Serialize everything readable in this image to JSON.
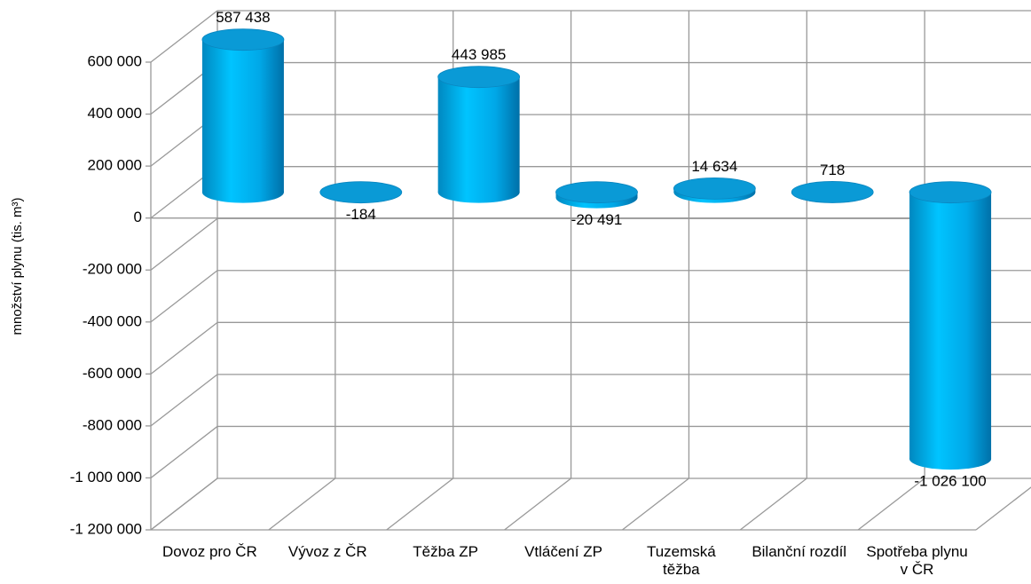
{
  "chart_data": {
    "type": "cylinder",
    "y_axis_label": "množství plynu (tis. m³)",
    "categories": [
      "Dovoz pro ČR",
      "Vývoz z ČR",
      "Těžba ZP",
      "Vtláčení ZP",
      "Tuzemská těžba",
      "Bilanční rozdíl",
      "Spotřeba plynu v ČR"
    ],
    "values": [
      587438,
      -184,
      443985,
      -20491,
      14634,
      718,
      -1026100
    ],
    "value_labels": [
      "587 438",
      "-184",
      "443 985",
      "-20 491",
      "14 634",
      "718",
      "-1 026 100"
    ],
    "color": "#00b4f0",
    "ylim": [
      -1200000,
      600000
    ],
    "yticks": [
      {
        "value": -1200000,
        "label": "-1 200 000"
      },
      {
        "value": -1000000,
        "label": "-1 000 000"
      },
      {
        "value": -800000,
        "label": "-800 000"
      },
      {
        "value": -600000,
        "label": "-600 000"
      },
      {
        "value": -400000,
        "label": "-400 000"
      },
      {
        "value": -200000,
        "label": "-200 000"
      },
      0,
      {
        "value": 200000,
        "label": "200 000"
      },
      {
        "value": 400000,
        "label": "400 000"
      },
      {
        "value": 600000,
        "label": "600 000"
      }
    ],
    "grid": true
  }
}
